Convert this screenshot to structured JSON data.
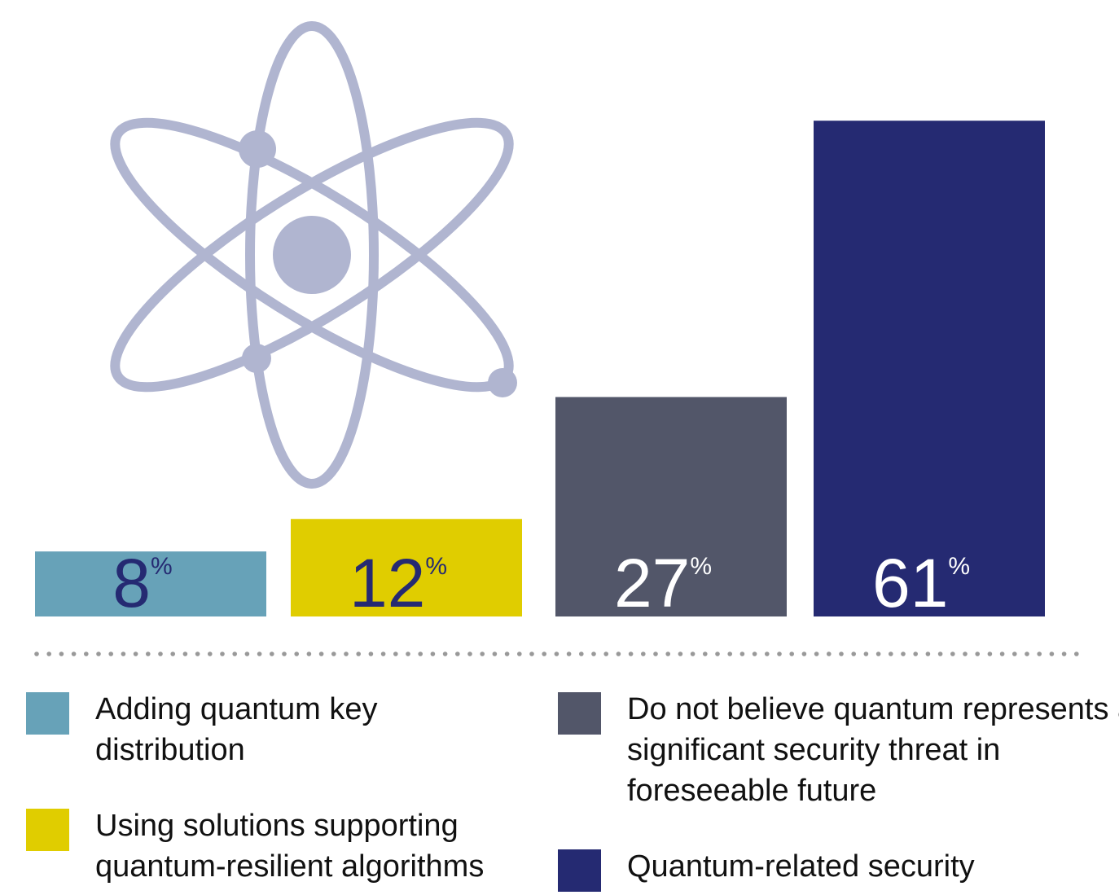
{
  "chart_data": {
    "type": "bar",
    "categories": [
      "Adding quantum key distribution",
      "Using solutions supporting quantum-resilient algorithms",
      "Do not believe quantum represents a significant security threat in foreseeable future",
      "Quantum-related security"
    ],
    "values": [
      8,
      12,
      27,
      61
    ],
    "value_labels": [
      "8%",
      "12%",
      "27%",
      "61%"
    ],
    "colors": [
      "#67a2b8",
      "#e0cd00",
      "#525669",
      "#252a72"
    ],
    "label_colors": [
      "#252a72",
      "#252a72",
      "#ffffff",
      "#ffffff"
    ]
  }
}
